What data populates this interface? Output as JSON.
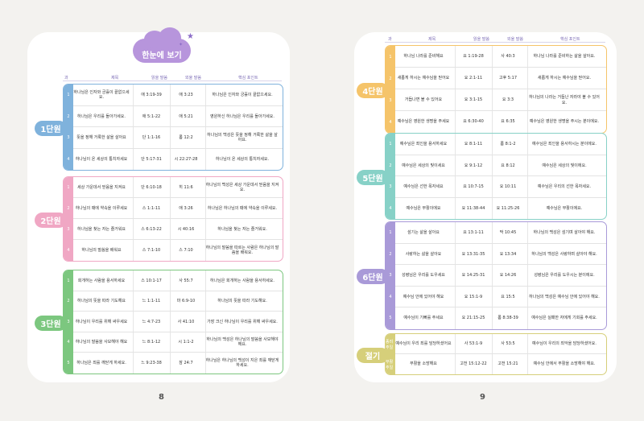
{
  "header": {
    "title": "한눈에 보기",
    "col_no": "과",
    "col_title": "제목",
    "col_read": "읽을 말씀",
    "col_memory": "외울 말씀",
    "col_point": "핵심 포인트"
  },
  "page_numbers": {
    "left": "8",
    "right": "9"
  },
  "colors": {
    "unit1": "#7fb2dc",
    "unit2": "#f0a7c4",
    "unit3": "#7cc77f",
    "unit4": "#f5c46a",
    "unit5": "#87d1c7",
    "unit6": "#a99ad8",
    "extra": "#d6cf7a"
  },
  "units": [
    {
      "label": "1단원",
      "rows": [
        {
          "n": "1",
          "title": "하나님은 인자와 긍휼이 끝없으세요.",
          "read": "애 3:19-39",
          "memory": "애 3:23",
          "point": "하나님은 인자와 긍휼이 끝없으세요."
        },
        {
          "n": "2",
          "title": "하나님은 우리를 돌아가세요.",
          "read": "애 5:1-22",
          "memory": "애 5:21",
          "point": "영원하신 하나님은 우리를 돌아가세요."
        },
        {
          "n": "3",
          "title": "뜻을 정해 거룩한 삶을 살아요",
          "read": "단 1:1-16",
          "memory": "롬 12:2",
          "point": "하나님의 백성은 뜻을 정해 거룩한 삶을 살아요."
        },
        {
          "n": "4",
          "title": "하나님이 온 세상의 통치자세요",
          "read": "단 5:17-31",
          "memory": "시 22:27-28",
          "point": "하나님이 온 세상의 통치자세요."
        }
      ]
    },
    {
      "label": "2단원",
      "rows": [
        {
          "n": "1",
          "title": "세상 가운데서 믿음을 지켜요",
          "read": "단 6:10-18",
          "memory": "히 11:6",
          "point": "하나님의 백성은 세상 가운데서 믿음을 지켜요."
        },
        {
          "n": "2",
          "title": "하나님의 때에 약속을 이루세요",
          "read": "스 1:1-11",
          "memory": "애 3:26",
          "point": "하나님은 하나님의 때에 약속을 이루세요."
        },
        {
          "n": "3",
          "title": "하나님을 찾는 자는 즐거워요",
          "read": "스 6:13-22",
          "memory": "시 40:16",
          "point": "하나님을 찾는 자는 즐거워요."
        },
        {
          "n": "4",
          "title": "하나님의 말씀을 배워요",
          "read": "스 7:1-10",
          "memory": "스 7:10",
          "point": "하나님의 말씀을 따르는 사람은 하나님의 말씀을 배워요."
        }
      ]
    },
    {
      "label": "3단원",
      "rows": [
        {
          "n": "1",
          "title": "회개하는 사람을 용서하세요",
          "read": "스 10:1-17",
          "memory": "사 55:7",
          "point": "하나님은 회개하는 사람을 용서하세요."
        },
        {
          "n": "2",
          "title": "하나님의 뜻을 따라 기도해요",
          "read": "느 1:1-11",
          "memory": "마 6:9-10",
          "point": "하나님의 뜻을 따라 기도해요."
        },
        {
          "n": "3",
          "title": "하나님이 우리를 위해 싸우세요",
          "read": "느 4:7-23",
          "memory": "사 41:10",
          "point": "가장 크신 하나님이 우리를 위해 싸우세요."
        },
        {
          "n": "4",
          "title": "하나님의 말씀을 사모해야 해요",
          "read": "느 8:1-12",
          "memory": "시 1:1-2",
          "point": "하나님의 백성은 하나님의 말씀을 사모해야 해요."
        },
        {
          "n": "5",
          "title": "하나님은 죄를 깨닫게 하세요.",
          "read": "느 9:23-38",
          "memory": "잠 24:7",
          "point": "하나님은 하나님의 백성이 지은 죄를 깨닫게 하세요."
        }
      ]
    },
    {
      "label": "4단원",
      "rows": [
        {
          "n": "1",
          "title": "하나님 나라를 준비해요",
          "read": "요 1:19-28",
          "memory": "사 40:3",
          "point": "하나님 나라를 준비하는 삶을 살아요."
        },
        {
          "n": "2",
          "title": "새롭게 하시는 예수님을 믿어요",
          "read": "요 2:1-11",
          "memory": "고후 5:17",
          "point": "새롭게 하시는 예수님을 믿어요."
        },
        {
          "n": "3",
          "title": "거듭나면 볼 수 있어요",
          "read": "요 3:1-15",
          "memory": "요 3:3",
          "point": "하나님의 나라는 거듭난 자라야 볼 수 있어요."
        },
        {
          "n": "4",
          "title": "예수님은 영원한 생명을 주세요",
          "read": "요 6:30-40",
          "memory": "요 6:35",
          "point": "예수님은 영원한 생명을 주시는 분이에요."
        }
      ]
    },
    {
      "label": "5단원",
      "rows": [
        {
          "n": "1",
          "title": "예수님은 죄인을 용서하세요",
          "read": "요 8:1-11",
          "memory": "롬 8:1-2",
          "point": "예수님은 죄인을 용서하시는 분이에요."
        },
        {
          "n": "2",
          "title": "예수님은 세상의 빛이세요",
          "read": "요 9:1-12",
          "memory": "요 8:12",
          "point": "예수님은 세상의 빛이에요."
        },
        {
          "n": "3",
          "title": "예수님은 선한 목자세요",
          "read": "요 10:7-15",
          "memory": "요 10:11",
          "point": "예수님은 우리의 선한 목자세요."
        },
        {
          "n": "4",
          "title": "예수님은 부활이에요",
          "read": "요 11:38-44",
          "memory": "요 11:25-26",
          "point": "예수님은 부활이에요."
        }
      ]
    },
    {
      "label": "6단원",
      "rows": [
        {
          "n": "1",
          "title": "섬기는 삶을 살아요",
          "read": "요 13:1-11",
          "memory": "막 10:45",
          "point": "하나님의 백성은 섬기며 살아야 해요."
        },
        {
          "n": "2",
          "title": "사랑하는 삶을 살아요",
          "read": "요 13:31-35",
          "memory": "요 13:34",
          "point": "하나님의 백성은 사랑하며 살아야 해요."
        },
        {
          "n": "3",
          "title": "성령님은 우리를 도우세요",
          "read": "요 14:25-31",
          "memory": "요 14:26",
          "point": "성령님은 우리를 도우시는 분이에요."
        },
        {
          "n": "4",
          "title": "예수님 안에 있어야 해요",
          "read": "요 15:1-9",
          "memory": "요 15:5",
          "point": "하나님의 백성은 예수님 안에 있어야 해요."
        },
        {
          "n": "5",
          "title": "예수님이 기뻐를 주세요",
          "read": "요 21:15-25",
          "memory": "롬 8:38-39",
          "point": "예수님은 실패한 자에게 기회를 주세요."
        }
      ]
    },
    {
      "label": "절기",
      "rows": [
        {
          "n": "종려주일",
          "title": "예수님이 우리 죄를 담당하셨어요",
          "read": "사 53:1-9",
          "memory": "사 53:5",
          "point": "예수님이 우리의 죄악을 담당하셨어요."
        },
        {
          "n": "부활주일",
          "title": "부활을 소망해요",
          "read": "고전 15:12-22",
          "memory": "고전 15:21",
          "point": "예수님 안에서 부활을 소망해야 해요."
        }
      ]
    }
  ]
}
